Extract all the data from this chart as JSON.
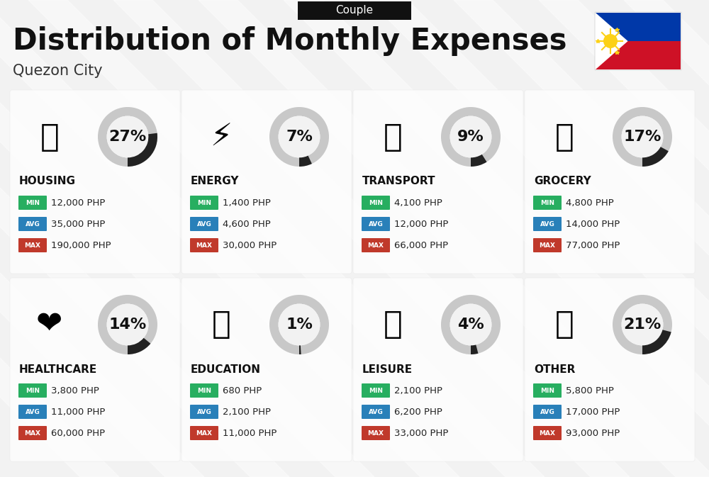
{
  "title": "Distribution of Monthly Expenses",
  "subtitle": "Quezon City",
  "header_label": "Couple",
  "background_color": "#f2f2f2",
  "categories": [
    {
      "name": "HOUSING",
      "percent": 27,
      "min_val": "12,000 PHP",
      "avg_val": "35,000 PHP",
      "max_val": "190,000 PHP",
      "row": 0,
      "col": 0
    },
    {
      "name": "ENERGY",
      "percent": 7,
      "min_val": "1,400 PHP",
      "avg_val": "4,600 PHP",
      "max_val": "30,000 PHP",
      "row": 0,
      "col": 1
    },
    {
      "name": "TRANSPORT",
      "percent": 9,
      "min_val": "4,100 PHP",
      "avg_val": "12,000 PHP",
      "max_val": "66,000 PHP",
      "row": 0,
      "col": 2
    },
    {
      "name": "GROCERY",
      "percent": 17,
      "min_val": "4,800 PHP",
      "avg_val": "14,000 PHP",
      "max_val": "77,000 PHP",
      "row": 0,
      "col": 3
    },
    {
      "name": "HEALTHCARE",
      "percent": 14,
      "min_val": "3,800 PHP",
      "avg_val": "11,000 PHP",
      "max_val": "60,000 PHP",
      "row": 1,
      "col": 0
    },
    {
      "name": "EDUCATION",
      "percent": 1,
      "min_val": "680 PHP",
      "avg_val": "2,100 PHP",
      "max_val": "11,000 PHP",
      "row": 1,
      "col": 1
    },
    {
      "name": "LEISURE",
      "percent": 4,
      "min_val": "2,100 PHP",
      "avg_val": "6,200 PHP",
      "max_val": "33,000 PHP",
      "row": 1,
      "col": 2
    },
    {
      "name": "OTHER",
      "percent": 21,
      "min_val": "5,800 PHP",
      "avg_val": "17,000 PHP",
      "max_val": "93,000 PHP",
      "row": 1,
      "col": 3
    }
  ],
  "min_color": "#27ae60",
  "avg_color": "#2980b9",
  "max_color": "#c0392b",
  "donut_fill_color": "#222222",
  "donut_bg_color": "#c8c8c8",
  "donut_inner_color": "#f2f2f2",
  "title_fontsize": 30,
  "subtitle_fontsize": 15,
  "category_fontsize": 11,
  "value_fontsize": 10,
  "percent_fontsize": 16,
  "diagonal_stripe_color": "#ffffff",
  "diagonal_stripe_alpha": 0.4
}
